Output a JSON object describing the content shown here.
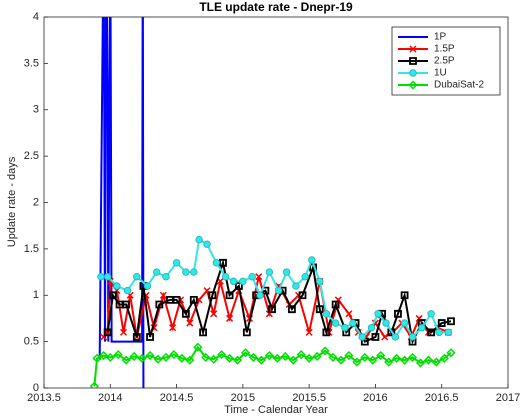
{
  "chart_data": {
    "type": "line",
    "title": "TLE update rate - Dnepr-19",
    "xlabel": "Time - Calendar Year",
    "ylabel": "Update rate - days",
    "xlim": [
      2013.5,
      2017
    ],
    "xticks": [
      2013.5,
      2014,
      2014.5,
      2015,
      2015.5,
      2016,
      2016.5,
      2017
    ],
    "ylim": [
      0,
      4
    ],
    "yticks": [
      0,
      0.5,
      1,
      1.5,
      2,
      2.5,
      3,
      3.5,
      4
    ],
    "legend": "upper right",
    "series": [
      {
        "name": "1P",
        "color": "#0000ff",
        "marker": "none",
        "x": [
          2013.92,
          2013.95,
          2013.96,
          2013.97,
          2013.98,
          2013.985,
          2014.0,
          2014.01,
          2014.24,
          2014.245,
          2014.25
        ],
        "values": [
          0.3,
          5,
          0.5,
          5,
          3.1,
          0.5,
          5,
          0.5,
          0.5,
          5,
          0
        ]
      },
      {
        "name": "1.5P",
        "color": "#ff0000",
        "marker": "x",
        "x": [
          2013.95,
          2013.98,
          2014.0,
          2014.05,
          2014.1,
          2014.15,
          2014.2,
          2014.27,
          2014.33,
          2014.4,
          2014.47,
          2014.53,
          2014.6,
          2014.67,
          2014.73,
          2014.78,
          2014.83,
          2014.9,
          2014.97,
          2015.05,
          2015.12,
          2015.2,
          2015.27,
          2015.35,
          2015.42,
          2015.5,
          2015.58,
          2015.65,
          2015.72,
          2015.8,
          2015.87,
          2015.93,
          2016.0,
          2016.07,
          2016.13,
          2016.2,
          2016.27,
          2016.33,
          2016.4,
          2016.47,
          2016.55
        ],
        "values": [
          0.55,
          0.6,
          1.15,
          1.05,
          0.6,
          1.0,
          0.55,
          1.0,
          0.65,
          1.0,
          0.65,
          0.95,
          0.7,
          0.95,
          1.05,
          0.8,
          1.15,
          0.75,
          1.05,
          0.75,
          1.2,
          0.8,
          1.1,
          0.9,
          1.0,
          0.6,
          1.15,
          0.6,
          0.95,
          0.8,
          0.6,
          0.55,
          0.7,
          0.55,
          0.6,
          0.7,
          0.55,
          0.75,
          0.6,
          0.65,
          0.6
        ]
      },
      {
        "name": "2.5P",
        "color": "#000000",
        "marker": "square",
        "x": [
          2013.98,
          2014.02,
          2014.07,
          2014.12,
          2014.2,
          2014.25,
          2014.3,
          2014.37,
          2014.45,
          2014.5,
          2014.57,
          2014.63,
          2014.7,
          2014.77,
          2014.85,
          2014.9,
          2014.97,
          2015.03,
          2015.1,
          2015.17,
          2015.22,
          2015.3,
          2015.37,
          2015.45,
          2015.53,
          2015.58,
          2015.63,
          2015.7,
          2015.78,
          2015.85,
          2015.92,
          2016.0,
          2016.05,
          2016.12,
          2016.17,
          2016.22,
          2016.28,
          2016.35,
          2016.42,
          2016.5,
          2016.57
        ],
        "values": [
          0.6,
          1.0,
          0.9,
          0.9,
          0.55,
          1.1,
          0.55,
          0.9,
          0.95,
          0.95,
          0.8,
          0.95,
          0.6,
          1.0,
          1.35,
          1.0,
          1.1,
          0.6,
          1.0,
          1.05,
          0.85,
          1.05,
          0.85,
          1.0,
          1.3,
          0.85,
          0.6,
          0.9,
          0.6,
          0.7,
          0.5,
          0.55,
          0.8,
          0.6,
          0.8,
          1.0,
          0.5,
          0.7,
          0.6,
          0.7,
          0.72
        ]
      },
      {
        "name": "1U",
        "color": "#33e6e6",
        "marker": "circle",
        "x": [
          2013.93,
          2013.98,
          2014.05,
          2014.13,
          2014.2,
          2014.28,
          2014.35,
          2014.42,
          2014.5,
          2014.57,
          2014.63,
          2014.67,
          2014.73,
          2014.8,
          2014.87,
          2014.93,
          2015.0,
          2015.07,
          2015.13,
          2015.2,
          2015.27,
          2015.33,
          2015.4,
          2015.47,
          2015.52,
          2015.58,
          2015.63,
          2015.7,
          2015.77,
          2015.83,
          2015.9,
          2015.97,
          2016.02,
          2016.08,
          2016.15,
          2016.22,
          2016.28,
          2016.35,
          2016.42,
          2016.48,
          2016.55
        ],
        "values": [
          1.2,
          1.2,
          1.1,
          1.05,
          1.2,
          1.1,
          1.25,
          1.2,
          1.35,
          1.25,
          1.25,
          1.6,
          1.55,
          1.35,
          1.2,
          1.15,
          1.15,
          1.2,
          1.0,
          1.25,
          1.05,
          1.25,
          1.1,
          1.2,
          1.38,
          1.15,
          0.8,
          0.7,
          0.65,
          0.7,
          0.55,
          0.65,
          0.8,
          0.7,
          0.55,
          0.7,
          0.55,
          0.65,
          0.8,
          0.6,
          0.6
        ]
      },
      {
        "name": "DubaiSat-2",
        "color": "#00e000",
        "marker": "diamond",
        "x": [
          2013.88,
          2013.9,
          2013.95,
          2014.0,
          2014.06,
          2014.12,
          2014.18,
          2014.24,
          2014.3,
          2014.36,
          2014.42,
          2014.48,
          2014.54,
          2014.6,
          2014.66,
          2014.72,
          2014.78,
          2014.84,
          2014.9,
          2014.96,
          2015.02,
          2015.08,
          2015.14,
          2015.2,
          2015.26,
          2015.32,
          2015.38,
          2015.44,
          2015.5,
          2015.56,
          2015.62,
          2015.68,
          2015.74,
          2015.8,
          2015.86,
          2015.92,
          2015.98,
          2016.04,
          2016.1,
          2016.16,
          2016.22,
          2016.28,
          2016.34,
          2016.4,
          2016.46,
          2016.52,
          2016.57
        ],
        "values": [
          0.02,
          0.32,
          0.35,
          0.33,
          0.36,
          0.3,
          0.34,
          0.32,
          0.35,
          0.31,
          0.33,
          0.36,
          0.32,
          0.3,
          0.44,
          0.33,
          0.31,
          0.36,
          0.32,
          0.3,
          0.38,
          0.33,
          0.3,
          0.35,
          0.32,
          0.34,
          0.3,
          0.36,
          0.32,
          0.34,
          0.4,
          0.33,
          0.3,
          0.35,
          0.28,
          0.33,
          0.3,
          0.35,
          0.28,
          0.32,
          0.3,
          0.33,
          0.27,
          0.3,
          0.28,
          0.32,
          0.38
        ]
      }
    ]
  }
}
